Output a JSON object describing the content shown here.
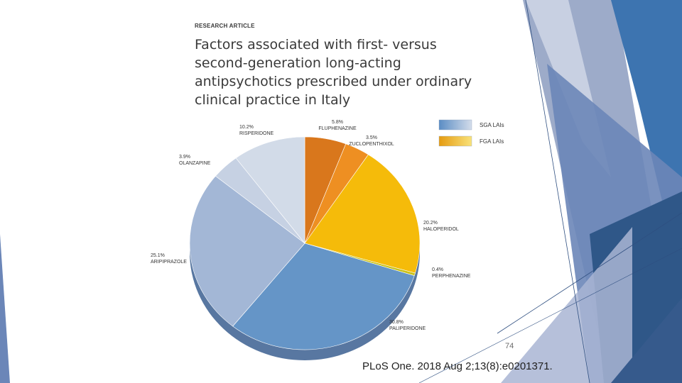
{
  "slide": {
    "kicker": "RESEARCH ARTICLE",
    "title": "Factors associated with first- versus second-generation long-acting antipsychotics prescribed under ordinary clinical practice in Italy",
    "page_number": "74",
    "citation": "PLoS One. 2018 Aug 2;13(8):e0201371."
  },
  "colors": {
    "sga_light": "#d3dcea",
    "sga_dark": "#5b8dc4",
    "fga_light": "#f9e27a",
    "fga_dark": "#e59b10",
    "accent_blue": "#3d74b0",
    "slate_blue": "#2f5788"
  },
  "chart_data": {
    "type": "pie",
    "title": "",
    "legend": {
      "placement": "top-right",
      "entries": [
        "SGA LAIs",
        "FGA LAIs"
      ]
    },
    "slices": [
      {
        "label": "FLUPHENAZINE",
        "value": 5.8,
        "display": "5.8%",
        "group": "FGA LAIs",
        "color": "#d9771c"
      },
      {
        "label": "ZUCLOPENTHIXOL",
        "value": 3.5,
        "display": "3.5%",
        "group": "FGA LAIs",
        "color": "#ee8f22"
      },
      {
        "label": "HALOPERIDOL",
        "value": 20.2,
        "display": "20.2%",
        "group": "FGA LAIs",
        "color": "#f5bb0a"
      },
      {
        "label": "PERPHENAZINE",
        "value": 0.4,
        "display": "0.4%",
        "group": "FGA LAIs",
        "color": "#c9c21a"
      },
      {
        "label": "PALIPERIDONE",
        "value": 30.8,
        "display": "30.8%",
        "group": "SGA LAIs",
        "color": "#6595c7"
      },
      {
        "label": "ARIPIPRAZOLE",
        "value": 25.1,
        "display": "25.1%",
        "group": "SGA LAIs",
        "color": "#a3b7d6"
      },
      {
        "label": "OLANZAPINE",
        "value": 3.9,
        "display": "3.9%",
        "group": "SGA LAIs",
        "color": "#c6d1e3"
      },
      {
        "label": "RISPERIDONE",
        "value": 10.2,
        "display": "10.2%",
        "group": "SGA LAIs",
        "color": "#d2dbe8"
      }
    ]
  }
}
